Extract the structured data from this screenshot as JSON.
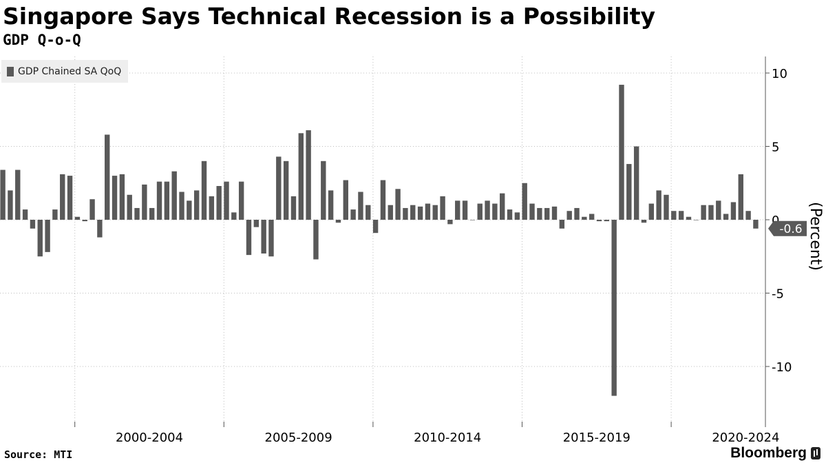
{
  "header": {
    "title": "Singapore Says Technical Recession is a Possibility",
    "subtitle": "GDP Q-o-Q"
  },
  "legend": {
    "label": "GDP Chained SA QoQ"
  },
  "footer": {
    "source": "Source: MTI",
    "brand": "Bloomberg"
  },
  "colors": {
    "bar": "#595959",
    "grid": "#bdbdbd",
    "axis": "#555555",
    "callout": "#595959",
    "callout_text": "#ffffff"
  },
  "chart_data": {
    "type": "bar",
    "title": "Singapore Says Technical Recession is a Possibility",
    "subtitle": "GDP Q-o-Q",
    "ylabel": "(Percent)",
    "ylim": [
      -13.5,
      11
    ],
    "yticks": [
      10,
      5,
      0,
      -5,
      -10
    ],
    "ytick_labels": [
      "10",
      "5",
      "0",
      "-5",
      "-10"
    ],
    "x_period_labels": [
      "2000-2004",
      "2005-2009",
      "2010-2014",
      "2015-2019",
      "2020-2024"
    ],
    "x_period_start": 1999,
    "quarters_per_period": 20,
    "legend": "GDP Chained SA QoQ",
    "last_value_label": "-0.6",
    "series": [
      {
        "name": "GDP Chained SA QoQ",
        "values": [
          3.4,
          2.0,
          3.4,
          0.7,
          -0.6,
          -2.5,
          -2.2,
          0.7,
          3.1,
          3.0,
          0.2,
          -0.1,
          1.4,
          -1.2,
          5.8,
          3.0,
          3.1,
          1.7,
          0.8,
          2.4,
          0.8,
          2.6,
          2.6,
          3.3,
          1.9,
          1.3,
          2.0,
          4.0,
          1.6,
          2.3,
          2.6,
          0.5,
          2.6,
          -2.4,
          -0.5,
          -2.3,
          -2.5,
          4.3,
          4.0,
          1.6,
          5.9,
          6.1,
          -2.7,
          4.0,
          2.0,
          -0.2,
          2.7,
          0.7,
          1.9,
          1.0,
          -0.9,
          2.7,
          1.0,
          2.1,
          0.8,
          1.0,
          0.9,
          1.1,
          1.0,
          1.6,
          -0.3,
          1.3,
          1.3,
          0.0,
          1.1,
          1.3,
          1.1,
          1.8,
          0.7,
          0.5,
          2.5,
          1.1,
          0.8,
          0.8,
          0.9,
          -0.6,
          0.6,
          0.8,
          0.2,
          0.4,
          -0.1,
          -0.1,
          -12.0,
          9.2,
          3.8,
          5.0,
          -0.2,
          1.1,
          2.0,
          1.7,
          0.6,
          0.6,
          0.2,
          0.0,
          1.0,
          1.0,
          1.3,
          0.4,
          1.2,
          3.1,
          0.6,
          -0.6
        ]
      }
    ]
  }
}
